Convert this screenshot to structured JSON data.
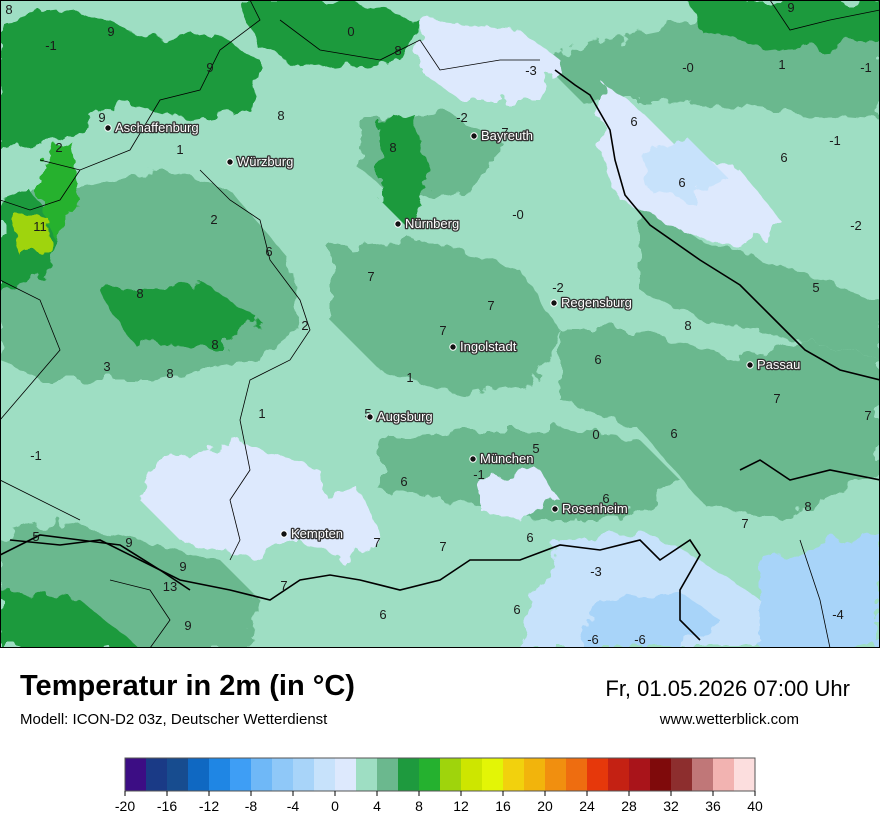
{
  "header": {
    "title": "Temperatur in 2m (in °C)",
    "model": "Modell: ICON-D2 03z, Deutscher Wetterdienst",
    "datetime": "Fr, 01.05.2026 07:00 Uhr",
    "site": "www.wetterblick.com"
  },
  "cities": [
    {
      "name": "Aschaffenburg"
    },
    {
      "name": "Würzburg"
    },
    {
      "name": "Bayreuth"
    },
    {
      "name": "Nürnberg"
    },
    {
      "name": "Regensburg"
    },
    {
      "name": "Ingolstadt"
    },
    {
      "name": "Passau"
    },
    {
      "name": "Augsburg"
    },
    {
      "name": "München"
    },
    {
      "name": "Rosenheim"
    },
    {
      "name": "Kempten"
    }
  ],
  "value_labels": [
    "8",
    "9",
    "-1",
    "9",
    "0",
    "8",
    "-3",
    "9",
    "-0",
    "1",
    "-1",
    "9",
    "8",
    "-2",
    "7",
    "6",
    "2",
    "1",
    "8",
    "6",
    "-1",
    "11",
    "2",
    "-0",
    "6",
    "-2",
    "6",
    "7",
    "-2",
    "7",
    "5",
    "8",
    "2",
    "8",
    "7",
    "8",
    "3",
    "6",
    "8",
    "1",
    "1",
    "5",
    "7",
    "0",
    "6",
    "7",
    "-1",
    "5",
    "-1",
    "6",
    "6",
    "7",
    "8",
    "5",
    "9",
    "7",
    "7",
    "6",
    "9",
    "-3",
    "13",
    "7",
    "9",
    "6",
    "6",
    "-6",
    "-6",
    "-4"
  ],
  "legend": {
    "colors": [
      "#3c0d84",
      "#1a3a86",
      "#174c8f",
      "#0f68c2",
      "#1f86e4",
      "#3e9ef5",
      "#6fb8f7",
      "#8fc8f8",
      "#a8d4f9",
      "#c7e2fb",
      "#dde9fd",
      "#9edec3",
      "#6bb88e",
      "#1e9a3e",
      "#25b12f",
      "#9fd40c",
      "#cde600",
      "#e3f506",
      "#f2d10d",
      "#f2b40c",
      "#f18f0f",
      "#ee6d10",
      "#e6380b",
      "#c42113",
      "#a9141a",
      "#7f0a0b",
      "#8d2e2e",
      "#c07778",
      "#f2b3b1",
      "#fcdede"
    ],
    "ticks": [
      "-20",
      "-16",
      "-12",
      "-8",
      "-4",
      "0",
      "4",
      "8",
      "12",
      "16",
      "20",
      "24",
      "28",
      "32",
      "36",
      "40"
    ]
  }
}
